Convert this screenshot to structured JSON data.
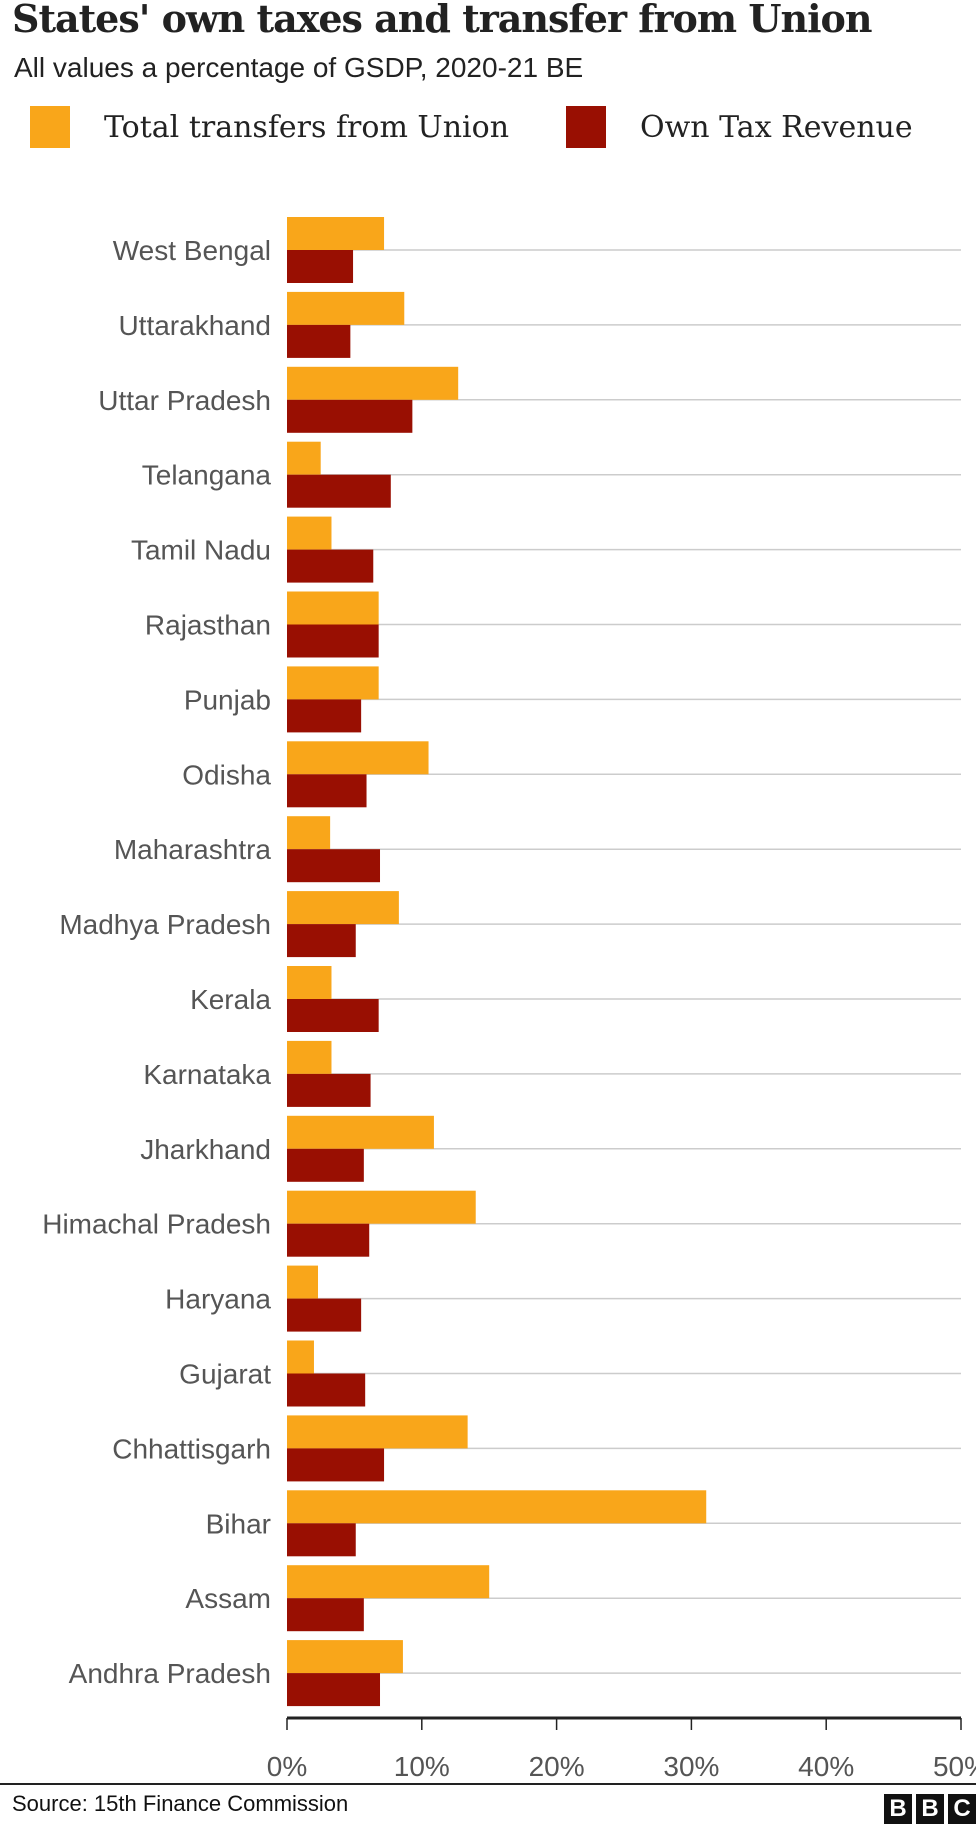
{
  "chart_data": {
    "type": "bar",
    "orientation": "horizontal",
    "title": "States' own taxes and transfer from Union",
    "subtitle": "All values a percentage of GSDP, 2020-21 BE",
    "categories": [
      "West Bengal",
      "Uttarakhand",
      "Uttar Pradesh",
      "Telangana",
      "Tamil Nadu",
      "Rajasthan",
      "Punjab",
      "Odisha",
      "Maharashtra",
      "Madhya Pradesh",
      "Kerala",
      "Karnataka",
      "Jharkhand",
      "Himachal Pradesh",
      "Haryana",
      "Gujarat",
      "Chhattisgarh",
      "Bihar",
      "Assam",
      "Andhra Pradesh"
    ],
    "series": [
      {
        "name": "Total transfers from Union",
        "color": "#f9a61a",
        "values": [
          7.2,
          8.7,
          12.7,
          2.5,
          3.3,
          6.8,
          6.8,
          10.5,
          3.2,
          8.3,
          3.3,
          3.3,
          10.9,
          14.0,
          2.3,
          2.0,
          13.4,
          31.1,
          15.0,
          8.6
        ]
      },
      {
        "name": "Own Tax Revenue",
        "color": "#990f02",
        "values": [
          4.9,
          4.7,
          9.3,
          7.7,
          6.4,
          6.8,
          5.5,
          5.9,
          6.9,
          5.1,
          6.8,
          6.2,
          5.7,
          6.1,
          5.5,
          5.8,
          7.2,
          5.1,
          5.7,
          6.9
        ]
      }
    ],
    "xlim": [
      0,
      50
    ],
    "xticks": [
      "0%",
      "10%",
      "20%",
      "30%",
      "40%",
      "50%"
    ],
    "xtick_values": [
      0,
      10,
      20,
      30,
      40,
      50
    ],
    "grid": true,
    "legend": "top"
  },
  "source": "Source: 15th Finance Commission",
  "logo": [
    "B",
    "B",
    "C"
  ]
}
